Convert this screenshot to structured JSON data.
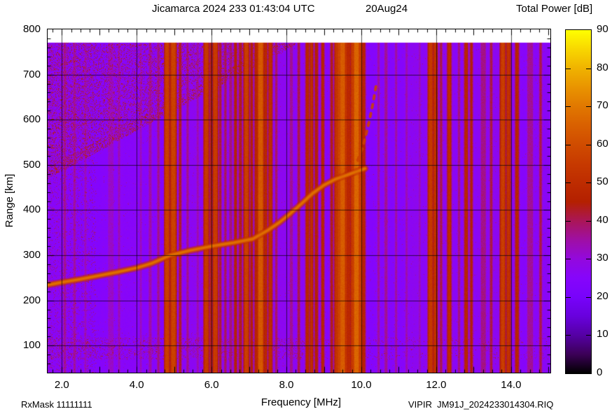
{
  "title": {
    "main": "Jicamarca 2024 233 01:43:04 UTC",
    "date": "20Aug24"
  },
  "colorbar": {
    "title": "Total Power [dB]",
    "min_db": 0,
    "max_db": 90,
    "tick_step_db": 10,
    "tick_labels": [
      "0",
      "10",
      "20",
      "30",
      "40",
      "50",
      "60",
      "70",
      "80",
      "90"
    ],
    "palette_name": "gnuplot rgbformulae 7,5,15 (black-violet-red-orange-yellow)"
  },
  "axes": {
    "x": {
      "label": "Frequency [MHz]",
      "tick_labels": [
        "2.0",
        "4.0",
        "6.0",
        "8.0",
        "10.0",
        "12.0",
        "14.0"
      ],
      "tick_values": [
        2,
        4,
        6,
        8,
        10,
        12,
        14
      ]
    },
    "y": {
      "label": "Range [km]",
      "tick_labels": [
        "100",
        "200",
        "300",
        "400",
        "500",
        "600",
        "700",
        "800"
      ],
      "tick_values": [
        100,
        200,
        300,
        400,
        500,
        600,
        700,
        800
      ]
    }
  },
  "footer": {
    "left": "RxMask 11111111",
    "right": "VIPIR  JM91J_2024233014304.RIQ"
  },
  "chart_data": {
    "type": "heatmap",
    "title": "Jicamarca 2024 233 01:43:04 UTC",
    "subtitle_date": "20Aug24",
    "xlabel": "Frequency [MHz]",
    "ylabel": "Range [km]",
    "zlabel": "Total Power [dB]",
    "x_range_mhz": [
      1.62,
      15.05
    ],
    "y_range_km": [
      40,
      800
    ],
    "z_range_db": [
      0,
      90
    ],
    "grid": {
      "x_step_mhz": 2,
      "y_step_km": 100,
      "shown": true
    },
    "data_top_km": 770,
    "background_db": 25.5,
    "colors": {
      "background_violet": "#8906F7",
      "rfi_stripe_red": "#C73A00",
      "echo_trace_orange": "#D96000",
      "noise_speckle_crimson": "#AE1A34",
      "colorbar_top_yellow": "#FFFF00",
      "colorbar_bottom_black": "#000000"
    },
    "echo_trace_o_mode": {
      "style": "solid",
      "intensity_db": 65,
      "points_mhz_km": [
        [
          1.62,
          234
        ],
        [
          2.0,
          240
        ],
        [
          2.5,
          247
        ],
        [
          3.0,
          255
        ],
        [
          3.5,
          263
        ],
        [
          4.0,
          272
        ],
        [
          4.4,
          282
        ],
        [
          4.9,
          300
        ],
        [
          5.4,
          310
        ],
        [
          6.0,
          320
        ],
        [
          6.6,
          328
        ],
        [
          7.1,
          336
        ],
        [
          7.5,
          355
        ],
        [
          7.8,
          372
        ],
        [
          8.1,
          392
        ],
        [
          8.4,
          414
        ],
        [
          8.7,
          437
        ],
        [
          9.0,
          455
        ],
        [
          9.3,
          468
        ],
        [
          9.7,
          480
        ],
        [
          10.1,
          492
        ]
      ]
    },
    "echo_trace_x_mode": {
      "style": "dashed",
      "intensity_db": 57,
      "points_mhz_km": [
        [
          9.9,
          510
        ],
        [
          10.02,
          535
        ],
        [
          10.12,
          565
        ],
        [
          10.22,
          600
        ],
        [
          10.32,
          640
        ],
        [
          10.4,
          678
        ]
      ]
    },
    "noise_wedge": {
      "description": "speckled noise region upper-left, above diagonal boundary",
      "boundary_mhz_km": [
        [
          1.62,
          470
        ],
        [
          8.3,
          770
        ]
      ],
      "speckle_db_range": [
        34,
        48
      ]
    },
    "bottom_noise_band_km": [
      70,
      118
    ],
    "left_noise_max_mhz": 2.9,
    "rfi_stripes_f_w_db": [
      [
        2.07,
        2,
        36
      ],
      [
        2.33,
        2,
        35
      ],
      [
        2.62,
        2,
        33
      ],
      [
        3.3,
        7,
        32
      ],
      [
        3.52,
        2,
        34
      ],
      [
        4.1,
        2,
        33
      ],
      [
        4.35,
        3,
        35
      ],
      [
        4.57,
        2,
        37
      ],
      [
        4.8,
        4,
        56
      ],
      [
        4.97,
        5,
        57
      ],
      [
        5.15,
        2,
        43
      ],
      [
        5.35,
        2,
        37
      ],
      [
        5.62,
        2,
        34
      ],
      [
        5.85,
        4,
        54
      ],
      [
        5.97,
        2,
        44
      ],
      [
        6.09,
        4,
        55
      ],
      [
        6.22,
        2,
        42
      ],
      [
        6.36,
        2,
        40
      ],
      [
        6.5,
        3,
        38
      ],
      [
        6.63,
        2,
        46
      ],
      [
        6.76,
        3,
        43
      ],
      [
        6.92,
        4,
        56
      ],
      [
        7.06,
        2,
        45
      ],
      [
        7.18,
        2,
        48
      ],
      [
        7.3,
        5,
        63
      ],
      [
        7.44,
        2,
        48
      ],
      [
        7.56,
        3,
        50
      ],
      [
        7.72,
        2,
        39
      ],
      [
        8.12,
        3,
        36
      ],
      [
        8.32,
        2,
        41
      ],
      [
        8.55,
        3,
        47
      ],
      [
        8.66,
        2,
        51
      ],
      [
        8.79,
        3,
        45
      ],
      [
        8.96,
        2,
        47
      ],
      [
        9.2,
        2,
        44
      ],
      [
        9.33,
        3,
        53
      ],
      [
        9.41,
        4,
        58
      ],
      [
        9.49,
        5,
        64
      ],
      [
        9.58,
        3,
        52
      ],
      [
        9.66,
        2,
        49
      ],
      [
        9.76,
        3,
        55
      ],
      [
        9.86,
        5,
        66
      ],
      [
        9.96,
        3,
        56
      ],
      [
        10.06,
        2,
        47
      ],
      [
        10.45,
        2,
        35
      ],
      [
        10.65,
        3,
        36
      ],
      [
        10.92,
        2,
        35
      ],
      [
        11.2,
        2,
        34
      ],
      [
        11.55,
        2,
        33
      ],
      [
        11.84,
        4,
        54
      ],
      [
        11.97,
        3,
        52
      ],
      [
        12.12,
        2,
        41
      ],
      [
        12.34,
        3,
        50
      ],
      [
        12.6,
        2,
        37
      ],
      [
        12.79,
        3,
        47
      ],
      [
        12.93,
        2,
        45
      ],
      [
        13.25,
        6,
        37
      ],
      [
        13.46,
        2,
        41
      ],
      [
        13.77,
        4,
        56
      ],
      [
        13.92,
        3,
        52
      ],
      [
        14.15,
        3,
        47
      ],
      [
        14.5,
        7,
        36
      ],
      [
        14.78,
        2,
        41
      ]
    ]
  }
}
